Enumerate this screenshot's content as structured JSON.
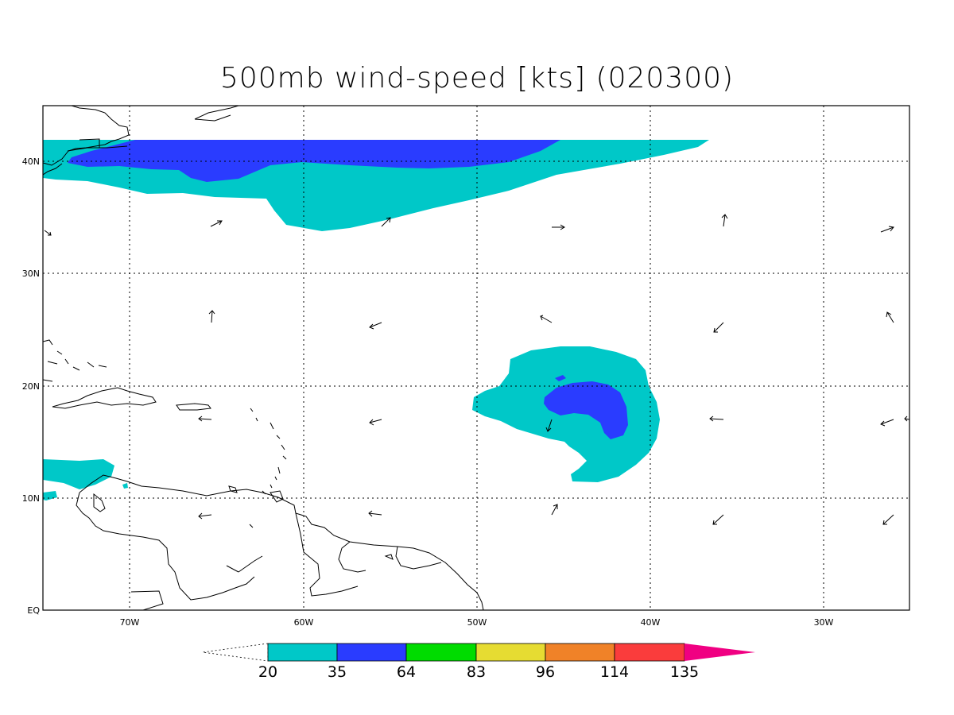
{
  "title": "500mb wind-speed [kts] (020300)",
  "lat_labels": [
    "40N",
    "30N",
    "20N",
    "10N",
    "EQ"
  ],
  "lon_labels": [
    "70W",
    "60W",
    "50W",
    "40W",
    "30W"
  ],
  "colorbar": {
    "ticks": [
      "20",
      "35",
      "64",
      "83",
      "96",
      "114",
      "135"
    ],
    "colors": [
      "#00c8c8",
      "#2a3cff",
      "#00dc00",
      "#e6dc32",
      "#f08228",
      "#fa3c3c",
      "#f00082"
    ]
  },
  "colors": {
    "shade_20_35": "#00c8c8",
    "shade_35_64": "#2a3cff"
  }
}
